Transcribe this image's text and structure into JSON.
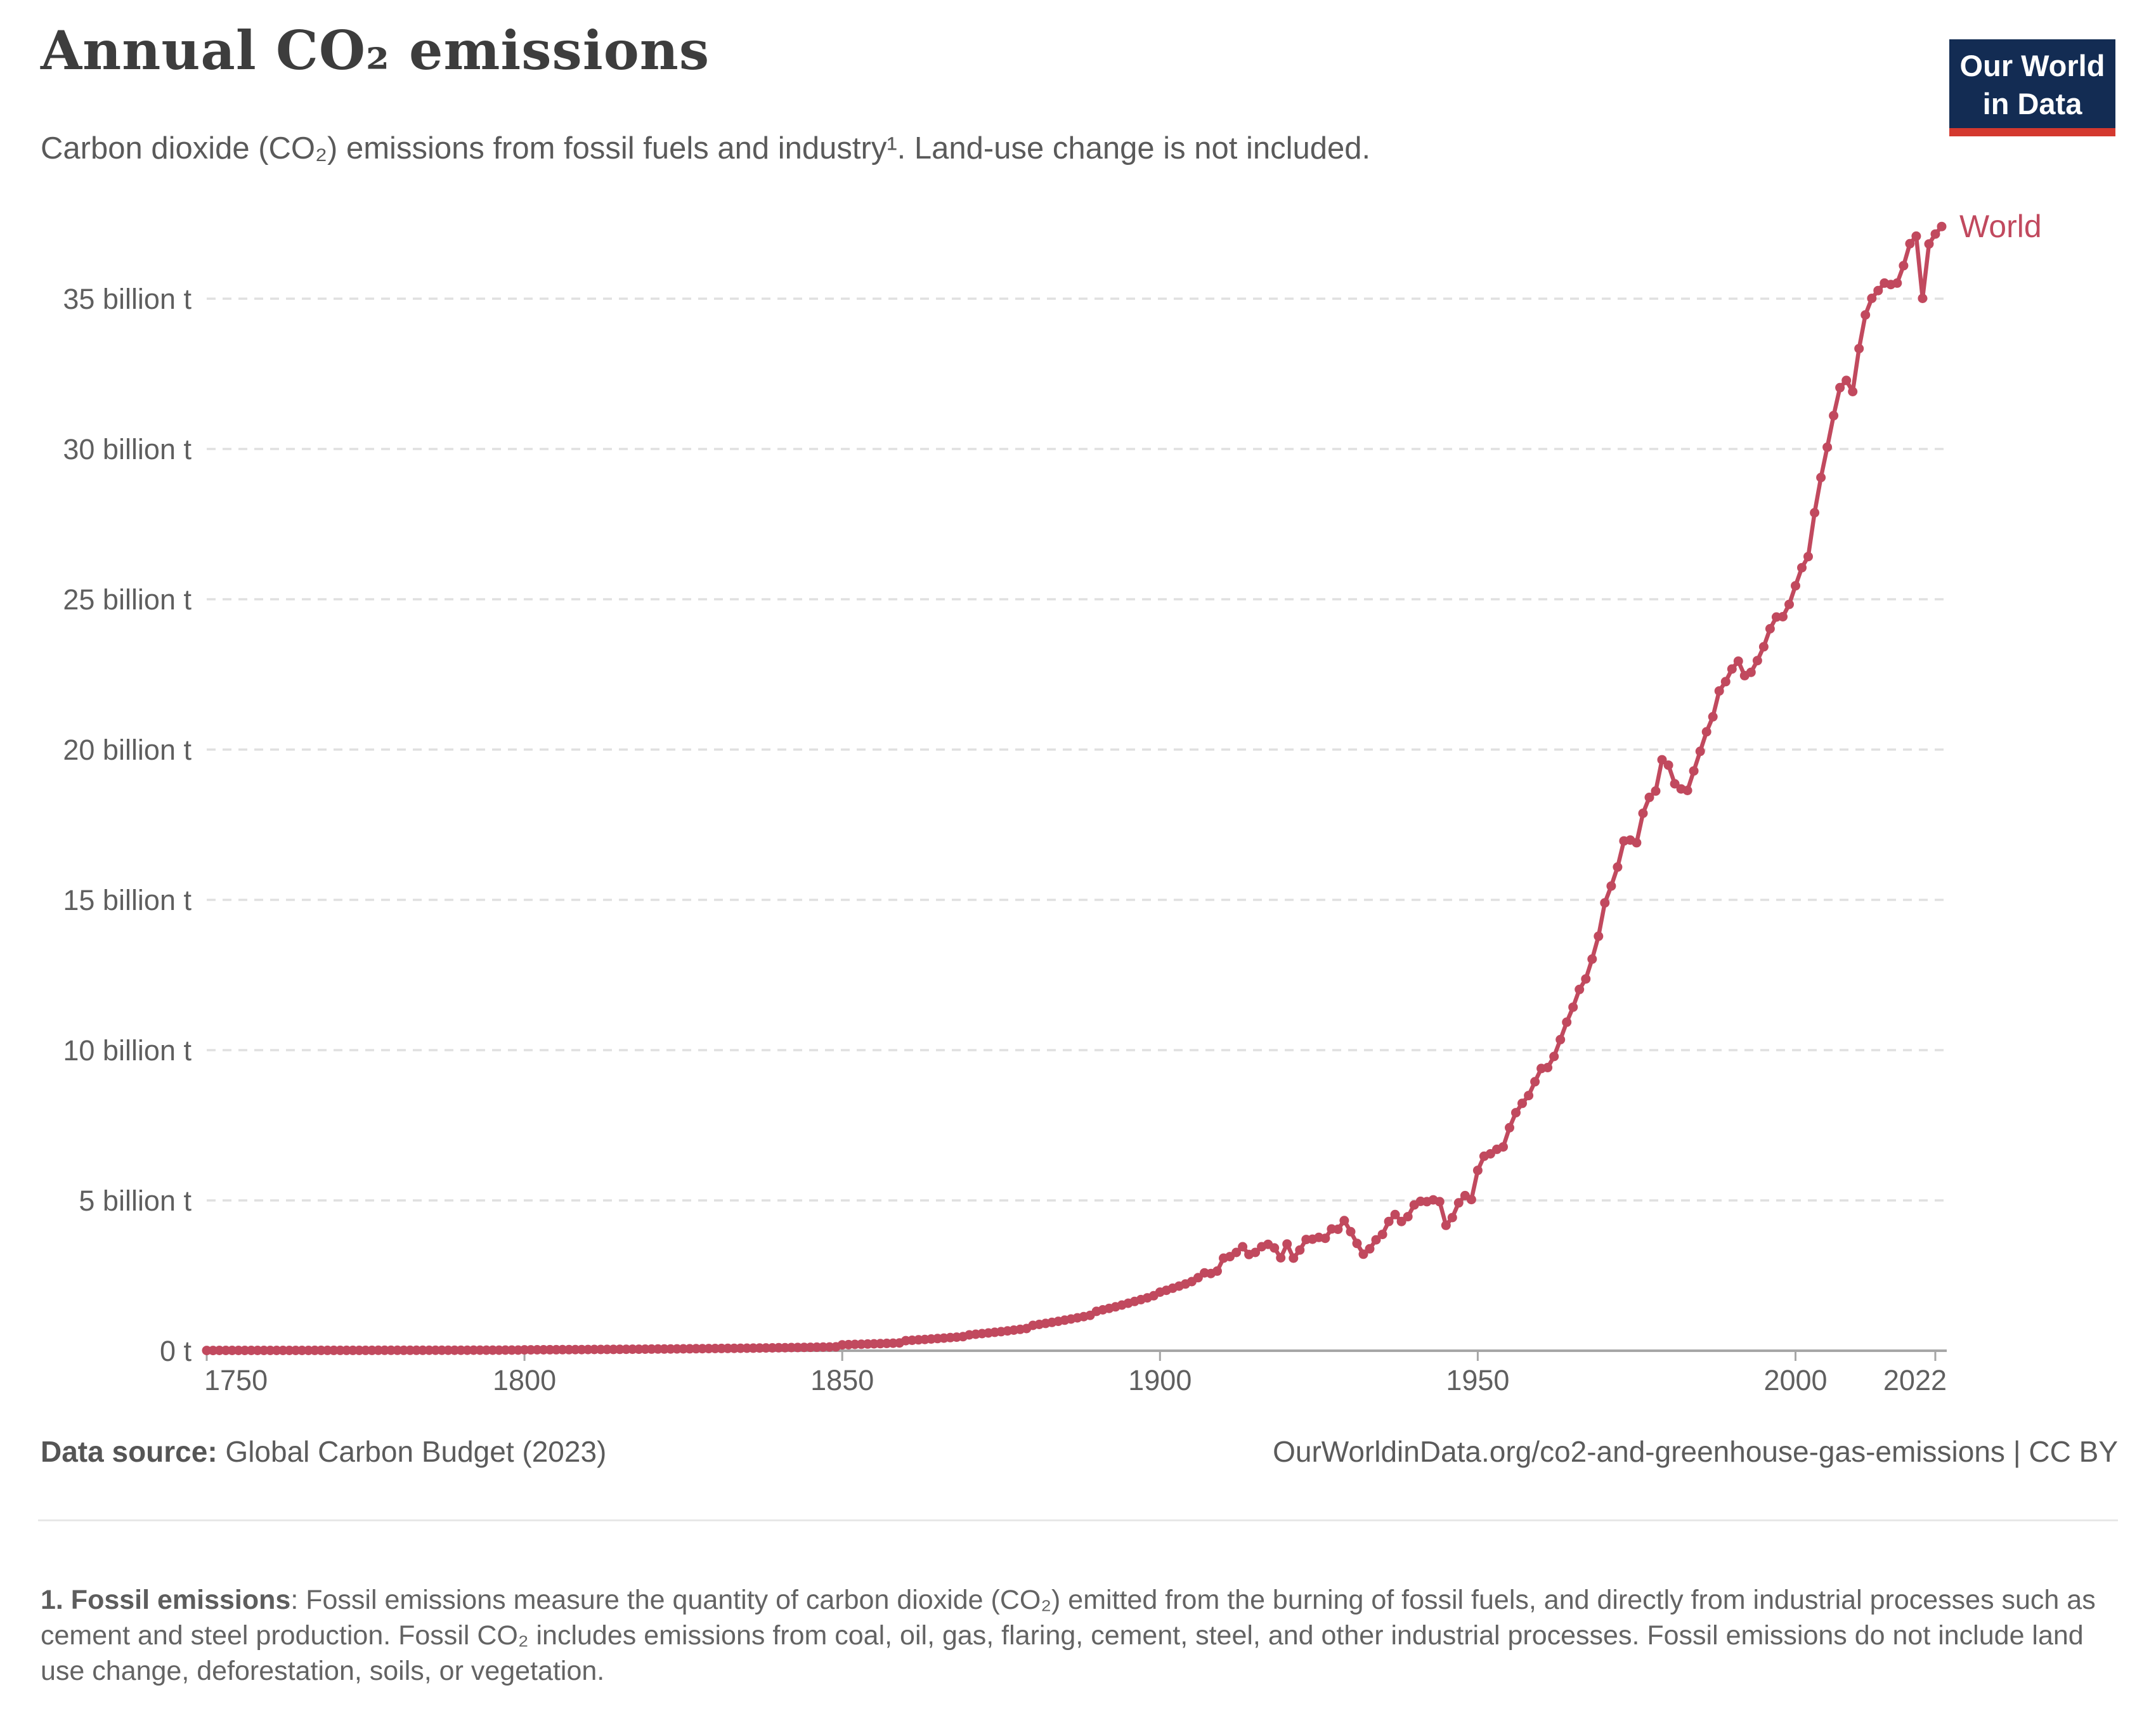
{
  "header": {
    "title": "Annual CO₂ emissions",
    "subtitle": "Carbon dioxide (CO₂) emissions from fossil fuels and industry¹. Land-use change is not included.",
    "logo": {
      "line1": "Our World",
      "line2": "in Data"
    }
  },
  "footer": {
    "datasource_label": "Data source:",
    "datasource_value": " Global Carbon Budget (2023)",
    "credit": "OurWorldinData.org/co2-and-greenhouse-gas-emissions | CC BY"
  },
  "footnote": {
    "label": "1. Fossil emissions",
    "text": ": Fossil emissions measure the quantity of carbon dioxide (CO₂) emitted from the burning of fossil fuels, and directly from industrial processes such as cement and steel production. Fossil CO₂ includes emissions from coal, oil, gas, flaring, cement, steel, and other industrial processes. Fossil emissions do not include land use change, deforestation, soils, or vegetation."
  },
  "chart_data": {
    "type": "line",
    "title": "Annual CO₂ emissions",
    "unit": "billion t",
    "series_label": "World",
    "line_color": "#c1495e",
    "grid": "dashed horizontal",
    "legend_position": "end-of-line",
    "x_start_year": 1750,
    "x_end_year": 2023,
    "xticks": [
      1750,
      1800,
      1850,
      1900,
      1950,
      2000,
      2022
    ],
    "ylim": [
      0,
      37.5
    ],
    "yticks": [
      {
        "value": 0,
        "label": "0 t"
      },
      {
        "value": 5,
        "label": "5 billion t"
      },
      {
        "value": 10,
        "label": "10 billion t"
      },
      {
        "value": 15,
        "label": "15 billion t"
      },
      {
        "value": 20,
        "label": "20 billion t"
      },
      {
        "value": 25,
        "label": "25 billion t"
      },
      {
        "value": 30,
        "label": "30 billion t"
      },
      {
        "value": 35,
        "label": "35 billion t"
      }
    ],
    "values": [
      0.0093,
      0.0094,
      0.0095,
      0.0096,
      0.0097,
      0.0098,
      0.01,
      0.0101,
      0.0102,
      0.0104,
      0.0105,
      0.0107,
      0.0108,
      0.011,
      0.0112,
      0.0113,
      0.0115,
      0.0117,
      0.0119,
      0.0121,
      0.0123,
      0.0125,
      0.0127,
      0.0129,
      0.0131,
      0.0133,
      0.0136,
      0.0138,
      0.014,
      0.0143,
      0.0145,
      0.0148,
      0.015,
      0.0153,
      0.0156,
      0.0159,
      0.0162,
      0.0165,
      0.0168,
      0.0171,
      0.0175,
      0.0178,
      0.0182,
      0.0185,
      0.0189,
      0.0193,
      0.0197,
      0.0201,
      0.0205,
      0.0209,
      0.0296,
      0.0305,
      0.0315,
      0.0325,
      0.0335,
      0.0345,
      0.0356,
      0.0367,
      0.0378,
      0.039,
      0.0402,
      0.0414,
      0.0427,
      0.044,
      0.0453,
      0.0467,
      0.0481,
      0.0496,
      0.0511,
      0.0527,
      0.0543,
      0.056,
      0.0577,
      0.0594,
      0.0612,
      0.0631,
      0.065,
      0.067,
      0.069,
      0.0711,
      0.0732,
      0.0754,
      0.0777,
      0.0801,
      0.0825,
      0.085,
      0.0875,
      0.0902,
      0.0929,
      0.0957,
      0.0986,
      0.1016,
      0.1047,
      0.1078,
      0.1111,
      0.1144,
      0.1179,
      0.1214,
      0.1251,
      0.1289,
      0.197,
      0.203,
      0.21,
      0.216,
      0.223,
      0.23,
      0.237,
      0.244,
      0.252,
      0.26,
      0.336,
      0.349,
      0.362,
      0.376,
      0.39,
      0.405,
      0.42,
      0.436,
      0.452,
      0.469,
      0.528,
      0.548,
      0.569,
      0.591,
      0.613,
      0.636,
      0.66,
      0.685,
      0.711,
      0.738,
      0.844,
      0.876,
      0.909,
      0.943,
      0.979,
      1.016,
      1.054,
      1.094,
      1.135,
      1.178,
      1.31,
      1.36,
      1.41,
      1.46,
      1.52,
      1.58,
      1.64,
      1.7,
      1.76,
      1.83,
      1.95,
      2.01,
      2.08,
      2.15,
      2.22,
      2.3,
      2.43,
      2.59,
      2.57,
      2.65,
      3.08,
      3.13,
      3.27,
      3.46,
      3.2,
      3.27,
      3.46,
      3.54,
      3.42,
      3.09,
      3.55,
      3.08,
      3.35,
      3.7,
      3.71,
      3.77,
      3.74,
      4.05,
      4.04,
      4.33,
      3.96,
      3.57,
      3.21,
      3.39,
      3.69,
      3.87,
      4.3,
      4.53,
      4.3,
      4.46,
      4.85,
      4.97,
      4.96,
      5.02,
      4.96,
      4.17,
      4.43,
      4.92,
      5.16,
      5.03,
      6.0,
      6.47,
      6.55,
      6.7,
      6.78,
      7.42,
      7.92,
      8.23,
      8.49,
      8.95,
      9.39,
      9.42,
      9.79,
      10.35,
      10.93,
      11.43,
      12.02,
      12.37,
      13.03,
      13.79,
      14.9,
      15.46,
      16.09,
      16.96,
      16.99,
      16.9,
      17.88,
      18.41,
      18.62,
      19.66,
      19.48,
      18.86,
      18.69,
      18.64,
      19.29,
      19.94,
      20.59,
      21.09,
      21.95,
      22.26,
      22.68,
      22.94,
      22.46,
      22.57,
      22.96,
      23.42,
      24.02,
      24.41,
      24.42,
      24.83,
      25.45,
      26.05,
      26.42,
      27.88,
      29.05,
      30.06,
      31.11,
      32.04,
      32.28,
      31.91,
      33.34,
      34.46,
      35.01,
      35.27,
      35.52,
      35.47,
      35.52,
      36.1,
      36.83,
      37.08,
      35.01,
      36.82,
      37.15,
      37.4
    ]
  }
}
